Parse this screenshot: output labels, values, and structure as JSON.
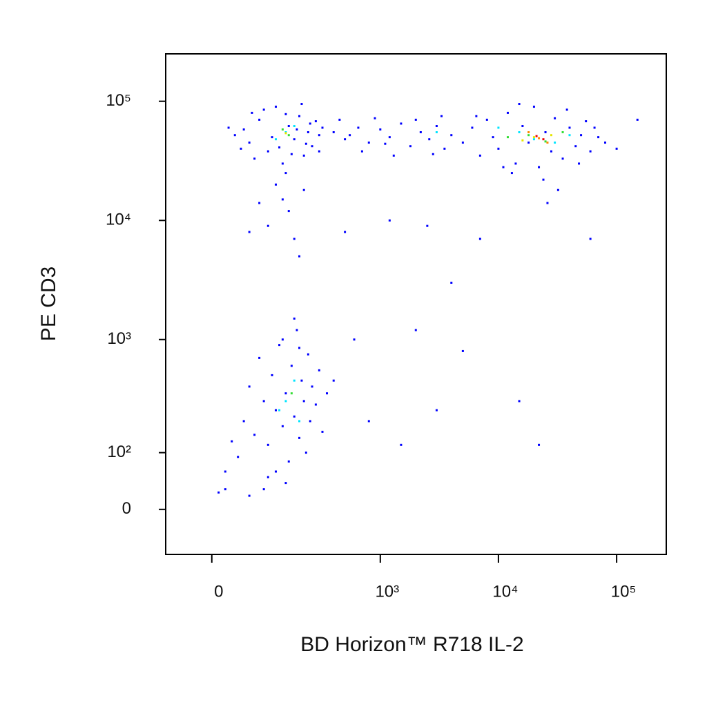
{
  "chart_data": {
    "type": "scatter",
    "xlabel": "BD Horizon™ R718 IL-2",
    "ylabel": "PE CD3",
    "xscale": "biexponential",
    "yscale": "biexponential",
    "xlim": [
      -77,
      263000
    ],
    "ylim": [
      -74,
      250000
    ],
    "xticks": [
      0,
      {
        "value": 1000,
        "label": "10³"
      },
      {
        "value": 10000,
        "label": "10⁴"
      },
      {
        "value": 100000,
        "label": "10⁵"
      }
    ],
    "yticks": [
      0,
      {
        "value": 100,
        "label": "10²"
      },
      {
        "value": 1000,
        "label": "10³"
      },
      {
        "value": 10000,
        "label": "10⁴"
      },
      {
        "value": 100000,
        "label": "10⁵"
      }
    ],
    "series": [
      {
        "color": "#0000ff",
        "x": [
          60,
          80,
          100,
          120,
          140,
          160,
          180,
          200,
          220,
          240,
          260,
          280,
          300,
          50,
          70,
          90,
          110,
          130,
          150,
          170,
          190,
          210,
          230,
          250,
          35,
          25,
          300,
          320,
          45,
          65,
          120,
          140,
          160,
          100,
          180,
          200,
          150,
          80,
          220,
          60,
          400,
          500,
          650,
          800,
          1000,
          1200,
          1500,
          1800,
          2200,
          2600,
          3000,
          3500,
          4000,
          450,
          700,
          900,
          1300,
          2000,
          2800,
          3300,
          550,
          1100,
          5000,
          6000,
          7000,
          8000,
          9000,
          10000,
          12000,
          14000,
          16000,
          18000,
          20000,
          22000,
          25000,
          28000,
          30000,
          35000,
          40000,
          45000,
          50000,
          55000,
          60000,
          70000,
          80000,
          100000,
          6500,
          11000,
          15000,
          24000,
          32000,
          13000,
          38000,
          48000,
          65000,
          26000,
          150000,
          50,
          60,
          70,
          80,
          90,
          100,
          110,
          120,
          130,
          140,
          150,
          160,
          170,
          180,
          190,
          200,
          210,
          220,
          230,
          240,
          250,
          260,
          280,
          300,
          320,
          40,
          30,
          20,
          350,
          400,
          120,
          150,
          180,
          140,
          200,
          100,
          90,
          60,
          20,
          5000,
          3000,
          1500,
          800,
          2000,
          600,
          4000,
          7000,
          2500,
          1200,
          60000,
          15000,
          22000,
          500,
          10
        ],
        "y": [
          45000,
          70000,
          38000,
          90000,
          30000,
          62000,
          48000,
          75000,
          35000,
          55000,
          42000,
          68000,
          52000,
          58000,
          33000,
          85000,
          50000,
          41000,
          78000,
          36000,
          58000,
          95000,
          44000,
          65000,
          52000,
          60000,
          38000,
          60000,
          40000,
          80000,
          20000,
          15000,
          12000,
          9000,
          7000,
          5000,
          25000,
          14000,
          18000,
          8000,
          55000,
          48000,
          60000,
          45000,
          58000,
          50000,
          65000,
          42000,
          55000,
          48000,
          62000,
          40000,
          52000,
          70000,
          38000,
          72000,
          35000,
          70000,
          36000,
          75000,
          52000,
          44000,
          45000,
          60000,
          35000,
          70000,
          50000,
          40000,
          80000,
          30000,
          62000,
          45000,
          90000,
          28000,
          55000,
          38000,
          72000,
          33000,
          60000,
          42000,
          52000,
          68000,
          38000,
          50000,
          45000,
          40000,
          75000,
          28000,
          95000,
          22000,
          18000,
          25000,
          85000,
          30000,
          60000,
          14000,
          70000,
          200,
          400,
          150,
          700,
          300,
          120,
          500,
          250,
          900,
          180,
          350,
          80,
          600,
          220,
          1200,
          140,
          450,
          300,
          100,
          750,
          200,
          400,
          280,
          550,
          160,
          90,
          130,
          60,
          350,
          450,
          60,
          40,
          1500,
          1000,
          850,
          50,
          30,
          20,
          30,
          800,
          250,
          120,
          200,
          1200,
          1000,
          3000,
          7000,
          9000,
          10000,
          7000,
          300,
          120,
          8000,
          25
        ]
      },
      {
        "color": "#00e5ff",
        "x": [
          150,
          120,
          180,
          20000,
          15000,
          30000,
          10000,
          40000,
          150,
          180,
          130,
          200,
          3000
        ],
        "y": [
          55000,
          48000,
          62000,
          48000,
          55000,
          45000,
          60000,
          52000,
          300,
          450,
          250,
          200,
          55000
        ]
      },
      {
        "color": "#33dd33",
        "x": [
          160,
          140,
          18000,
          25000,
          12000,
          35000,
          170
        ],
        "y": [
          52000,
          58000,
          52000,
          46000,
          50000,
          55000,
          350
        ]
      },
      {
        "color": "#e6e600",
        "x": [
          150,
          20000,
          28000,
          16000
        ],
        "y": [
          54000,
          50000,
          52000,
          47000
        ]
      },
      {
        "color": "#ff8800",
        "x": [
          22000,
          18000,
          26000
        ],
        "y": [
          49000,
          55000,
          45000
        ]
      },
      {
        "color": "#ee0000",
        "x": [
          21000,
          24000
        ],
        "y": [
          51000,
          48000
        ]
      }
    ]
  }
}
